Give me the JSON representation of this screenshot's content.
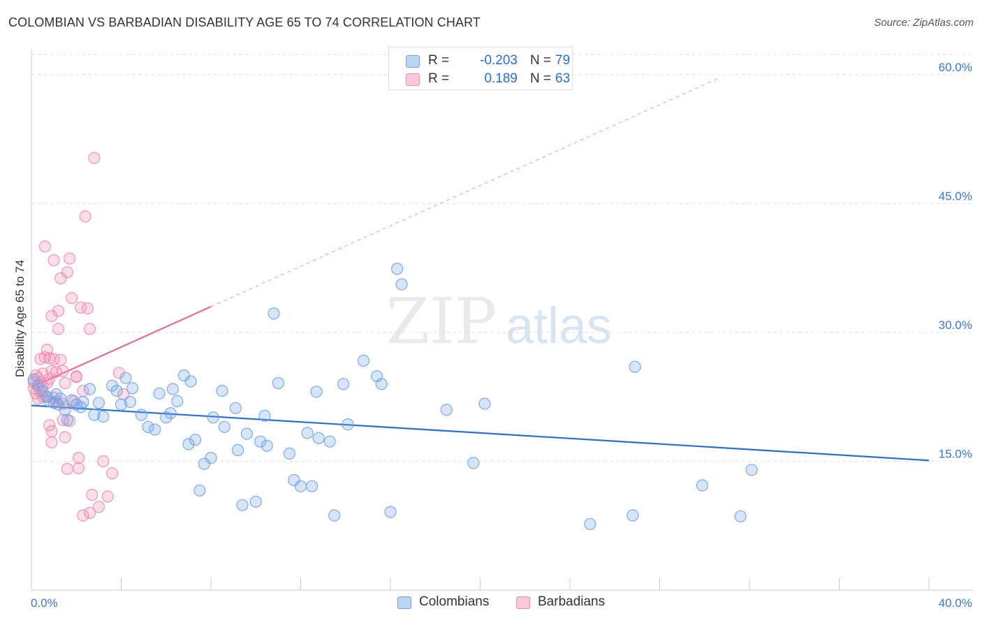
{
  "header": {
    "title": "COLOMBIAN VS BARBADIAN DISABILITY AGE 65 TO 74 CORRELATION CHART",
    "source": "Source: ZipAtlas.com"
  },
  "watermark": {
    "zip": "ZIP",
    "atlas": "atlas"
  },
  "legend_top": {
    "rows": [
      {
        "r_label": "R =",
        "r_value": "-0.203",
        "n_label": "N =",
        "n_value": "79",
        "color": "#6fa3e6"
      },
      {
        "r_label": "R =",
        "r_value": "0.189",
        "n_label": "N =",
        "n_value": "63",
        "color": "#f08cac"
      }
    ]
  },
  "legend_bottom": {
    "items": [
      {
        "label": "Colombians",
        "color": "#6fa3e6"
      },
      {
        "label": "Barbadians",
        "color": "#f08cac"
      }
    ]
  },
  "chart_data": {
    "type": "scatter",
    "title": "COLOMBIAN VS BARBADIAN DISABILITY AGE 65 TO 74 CORRELATION CHART",
    "xlabel": "",
    "ylabel": "Disability Age 65 to 74",
    "xlim": [
      0,
      40
    ],
    "ylim": [
      0,
      63
    ],
    "x_tick_labels": [
      "0.0%",
      "40.0%"
    ],
    "y_ticks": [
      15,
      30,
      45,
      60
    ],
    "y_tick_labels": [
      "15.0%",
      "30.0%",
      "45.0%",
      "60.0%"
    ],
    "grid": true,
    "legend_position": "top-center",
    "series": [
      {
        "name": "Colombians",
        "color": "#6fa3e6",
        "trend_color": "#2a6fcf",
        "trend": {
          "x": [
            0,
            40
          ],
          "y": [
            21.5,
            15.1
          ],
          "dashed_extension_to_x": null
        },
        "x": [
          0.1,
          0.3,
          0.5,
          0.7,
          0.8,
          1.0,
          1.1,
          1.2,
          1.3,
          1.5,
          1.6,
          1.8,
          2.0,
          2.2,
          2.3,
          2.6,
          2.8,
          3.0,
          3.2,
          3.6,
          3.8,
          4.0,
          4.2,
          4.4,
          4.5,
          4.9,
          5.2,
          5.5,
          5.7,
          6.0,
          6.2,
          6.3,
          6.5,
          6.8,
          7.0,
          7.1,
          7.3,
          7.5,
          7.7,
          8.0,
          8.1,
          8.5,
          8.6,
          9.1,
          9.2,
          9.4,
          9.6,
          10.0,
          10.2,
          10.4,
          10.5,
          10.8,
          11.0,
          11.5,
          11.7,
          12.0,
          12.3,
          12.5,
          12.7,
          12.8,
          13.3,
          13.5,
          13.9,
          14.1,
          14.8,
          15.4,
          15.6,
          16.0,
          16.3,
          16.5,
          18.5,
          19.7,
          20.2,
          24.9,
          26.8,
          26.9,
          29.9,
          31.6,
          32.1
        ],
        "y": [
          24.5,
          23.8,
          23.2,
          22.5,
          22.0,
          21.8,
          22.8,
          21.6,
          22.3,
          21.0,
          19.8,
          22.1,
          21.6,
          21.3,
          21.9,
          23.4,
          20.4,
          21.8,
          20.2,
          23.8,
          23.2,
          21.6,
          24.7,
          21.9,
          23.5,
          20.4,
          19.0,
          18.7,
          22.9,
          20.1,
          20.6,
          23.4,
          22.0,
          25.0,
          17.0,
          24.3,
          17.5,
          11.6,
          14.7,
          15.4,
          20.1,
          23.2,
          19.0,
          21.2,
          16.3,
          9.9,
          18.2,
          10.3,
          17.3,
          20.3,
          16.8,
          32.2,
          24.1,
          15.9,
          12.8,
          12.1,
          18.3,
          12.1,
          23.1,
          17.7,
          17.3,
          8.7,
          24.0,
          19.3,
          26.7,
          24.9,
          24.0,
          9.1,
          37.4,
          35.6,
          21.0,
          14.8,
          21.7,
          7.7,
          8.7,
          26.0,
          12.2,
          8.6,
          14.0
        ]
      },
      {
        "name": "Barbadians",
        "color": "#f08cac",
        "trend_color": "#e36b95",
        "trend": {
          "x": [
            0,
            8
          ],
          "y": [
            23.6,
            33.0
          ],
          "dashed_extension_to_x": 30.7
        },
        "x": [
          0.1,
          0.1,
          0.2,
          0.2,
          0.3,
          0.3,
          0.4,
          0.4,
          0.4,
          0.5,
          0.5,
          0.5,
          0.6,
          0.6,
          0.6,
          0.7,
          0.7,
          0.8,
          0.8,
          0.8,
          0.9,
          0.9,
          0.9,
          0.9,
          1.0,
          1.0,
          1.0,
          1.1,
          1.1,
          1.2,
          1.2,
          1.3,
          1.3,
          1.4,
          1.4,
          1.4,
          1.5,
          1.5,
          1.6,
          1.6,
          1.7,
          1.7,
          1.8,
          1.9,
          2.0,
          2.0,
          2.1,
          2.1,
          2.2,
          2.3,
          2.3,
          2.4,
          2.5,
          2.6,
          2.6,
          2.7,
          2.8,
          3.0,
          3.2,
          3.4,
          3.6,
          3.9,
          4.1
        ],
        "y": [
          24.2,
          23.5,
          25.0,
          22.9,
          24.7,
          22.3,
          23.1,
          26.9,
          24.2,
          25.2,
          23.8,
          22.5,
          40.0,
          27.1,
          22.6,
          28.0,
          24.1,
          24.6,
          27.0,
          19.2,
          18.5,
          25.5,
          31.9,
          17.2,
          38.4,
          22.4,
          26.9,
          21.9,
          25.4,
          32.5,
          30.4,
          26.8,
          36.3,
          25.5,
          19.8,
          21.7,
          17.8,
          24.1,
          37.0,
          14.1,
          38.6,
          19.7,
          34.0,
          22.0,
          24.9,
          24.8,
          15.4,
          14.2,
          32.9,
          8.7,
          23.2,
          43.5,
          32.8,
          9.0,
          30.4,
          11.1,
          50.3,
          9.7,
          15.0,
          10.9,
          13.6,
          25.3,
          22.8
        ]
      }
    ]
  }
}
